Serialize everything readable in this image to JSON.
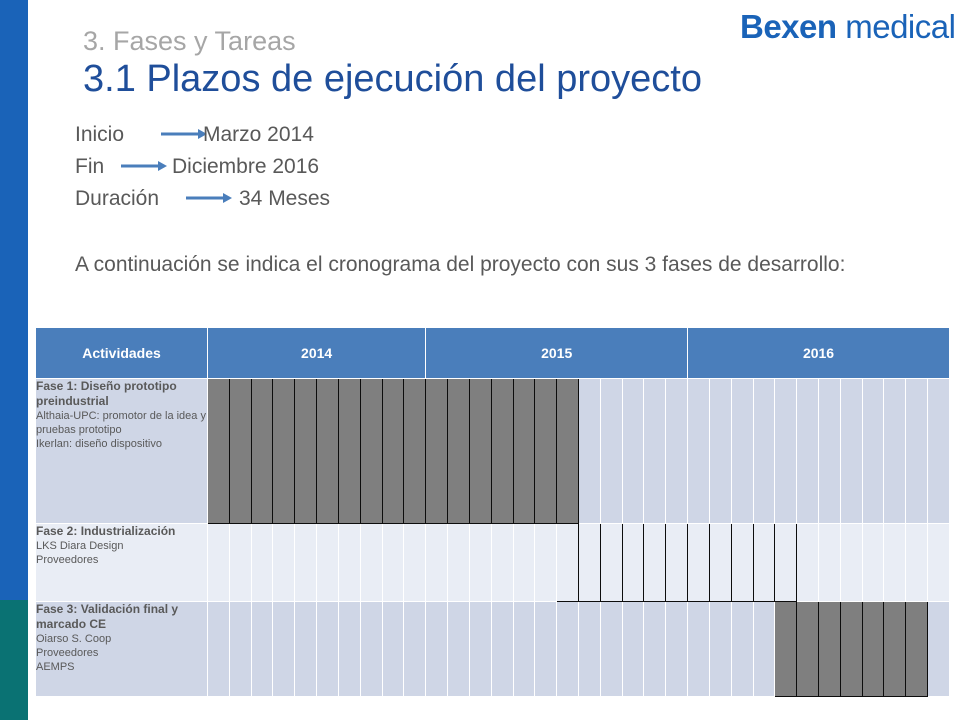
{
  "brand": {
    "part1": "Bexen",
    "part2": " medical"
  },
  "header": {
    "subtitle": "3. Fases y Tareas",
    "title": "3.1 Plazos de ejecución del proyecto"
  },
  "info": [
    {
      "label": "Inicio",
      "value": "Marzo 2014"
    },
    {
      "label": "Fin",
      "value": "Diciembre 2016"
    },
    {
      "label": "Duración",
      "value": "34 Meses"
    }
  ],
  "description": "A continuación se indica el cronograma del proyecto con sus 3 fases de desarrollo:",
  "icons": {
    "arrow": "arrow-right-icon"
  },
  "colors": {
    "accent": "#1f4e9a",
    "header_bg": "#4a7ebb",
    "bar": "#7f7f7f"
  },
  "table": {
    "columns": [
      "Actividades",
      "2014",
      "2015",
      "2016"
    ],
    "period_count": 34,
    "phases": [
      {
        "name": "Fase 1: Diseño prototipo preindustrial",
        "details": [
          "Althaia-UPC: promotor de la idea y pruebas prototipo",
          "Ikerlan: diseño dispositivo"
        ],
        "active": [
          1,
          2,
          3,
          4,
          5,
          6,
          7,
          8,
          9,
          10,
          11,
          12,
          13,
          14,
          15,
          16,
          17
        ]
      },
      {
        "name": "Fase 2: Industrialización",
        "details": [
          "LKS Diara Design",
          "Proveedores"
        ],
        "active": [
          17,
          18,
          19,
          20,
          21,
          22,
          23,
          24,
          25,
          26,
          27
        ]
      },
      {
        "name": "Fase 3: Validación final y marcado CE",
        "details": [
          "Oiarso S. Coop",
          "Proveedores",
          "AEMPS"
        ],
        "active": [
          27,
          28,
          29,
          30,
          31,
          32,
          33
        ]
      }
    ]
  }
}
